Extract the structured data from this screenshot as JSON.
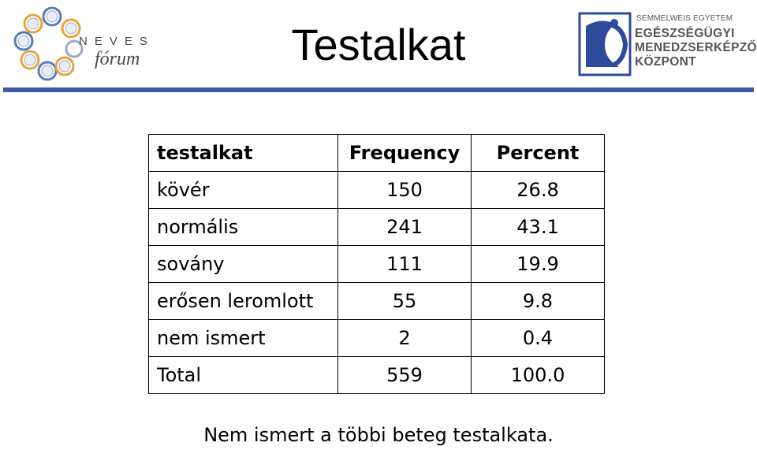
{
  "header": {
    "title": "Testalkat",
    "left_logo": {
      "word": "NEVES",
      "script": "fórum",
      "ring_colors": [
        "#e8a33c",
        "#5b7bb5",
        "#9aa9c7"
      ]
    },
    "right_logo": {
      "line1": "SEMMELWEIS EGYETEM",
      "line2": "EGÉSZSÉGÜGYI",
      "line3": "MENEDZSERKÉPZŐ",
      "line4": "KÖZPONT",
      "emblem_color": "#2e4a9a"
    },
    "divider_color": "#3f57a6"
  },
  "table": {
    "headers": [
      "testalkat",
      "Frequency",
      "Percent"
    ],
    "rows": [
      [
        "kövér",
        "150",
        "26.8"
      ],
      [
        "normális",
        "241",
        "43.1"
      ],
      [
        "sovány",
        "111",
        "19.9"
      ],
      [
        "erősen leromlott",
        "55",
        "9.8"
      ],
      [
        "nem ismert",
        "2",
        "0.4"
      ],
      [
        "Total",
        "559",
        "100.0"
      ]
    ]
  },
  "footnote": "Nem ismert a többi beteg testalkata."
}
